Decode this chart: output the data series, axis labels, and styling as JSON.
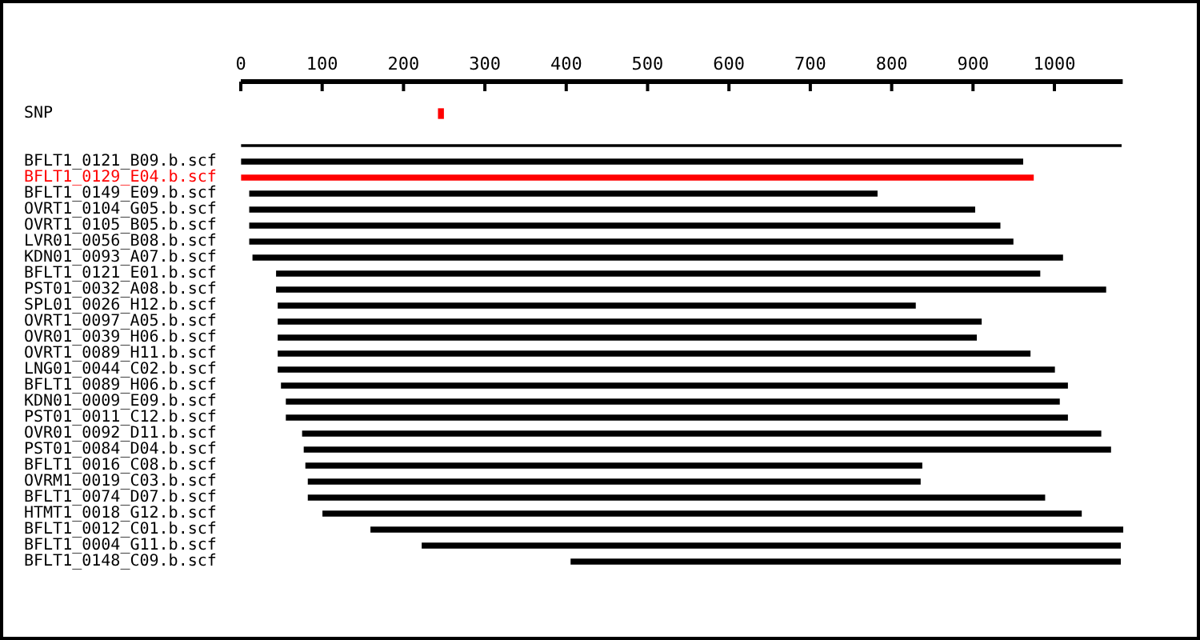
{
  "chart_data": {
    "type": "bar",
    "orientation": "horizontal",
    "xlim": [
      0,
      1084
    ],
    "xticks": [
      0,
      100,
      200,
      300,
      400,
      500,
      600,
      700,
      800,
      900,
      1000
    ],
    "categories": [
      "SNP",
      null,
      null,
      "BFLT1_0121_B09.b.scf",
      "BFLT1_0129_E04.b.scf",
      "BFLT1_0149_E09.b.scf",
      "OVRT1_0104_G05.b.scf",
      "OVRT1_0105_B05.b.scf",
      "LVR01_0056_B08.b.scf",
      "KDN01_0093_A07.b.scf",
      "BFLT1_0121_E01.b.scf",
      "PST01_0032_A08.b.scf",
      "SPL01_0026_H12.b.scf",
      "OVRT1_0097_A05.b.scf",
      "OVR01_0039_H06.b.scf",
      "OVRT1_0089_H11.b.scf",
      "LNG01_0044_C02.b.scf",
      "BFLT1_0089_H06.b.scf",
      "KDN01_0009_E09.b.scf",
      "PST01_0011_C12.b.scf",
      "OVR01_0092_D11.b.scf",
      "PST01_0084_D04.b.scf",
      "BFLT1_0016_C08.b.scf",
      "OVRM1_0019_C03.b.scf",
      "BFLT1_0074_D07.b.scf",
      "HTMT1_0018_G12.b.scf",
      "BFLT1_0012_C01.b.scf",
      "BFLT1_0004_G11.b.scf",
      "BFLT1_0148_C09.b.scf"
    ],
    "series": [
      {
        "color": "#ff0000",
        "values": [
          6,
          null,
          null,
          null,
          null,
          null,
          null,
          null,
          null,
          null,
          null,
          null,
          null,
          null,
          null,
          null,
          null,
          null,
          null,
          null,
          null,
          null,
          null,
          null,
          null,
          null,
          null,
          null,
          null
        ],
        "base": [
          243,
          null,
          null,
          null,
          null,
          null,
          null,
          null,
          null,
          null,
          null,
          null,
          null,
          null,
          null,
          null,
          null,
          null,
          null,
          null,
          null,
          null,
          null,
          null,
          null,
          null,
          null,
          null,
          null
        ]
      },
      {
        "color": "#000000",
        "values": [
          null,
          null,
          1082,
          null,
          null,
          null,
          null,
          null,
          null,
          null,
          null,
          null,
          null,
          null,
          null,
          null,
          null,
          null,
          null,
          null,
          null,
          null,
          null,
          null,
          null,
          null,
          null,
          null,
          null
        ],
        "base": [
          null,
          null,
          0,
          null,
          null,
          null,
          null,
          null,
          null,
          null,
          null,
          null,
          null,
          null,
          null,
          null,
          null,
          null,
          null,
          null,
          null,
          null,
          null,
          null,
          null,
          null,
          null,
          null,
          null
        ]
      },
      {
        "colors": [
          null,
          null,
          null,
          "#000000",
          "#ff0000",
          "#000000",
          "#000000",
          "#000000",
          "#000000",
          "#000000",
          "#000000",
          "#000000",
          "#000000",
          "#000000",
          "#000000",
          "#000000",
          "#000000",
          "#000000",
          "#000000",
          "#000000",
          "#000000",
          "#000000",
          "#000000",
          "#000000",
          "#000000",
          "#000000",
          "#000000",
          "#000000",
          "#000000"
        ],
        "values": [
          null,
          null,
          null,
          960,
          973,
          771,
          891,
          922,
          938,
          995,
          938,
          1019,
          783,
          864,
          858,
          924,
          954,
          966,
          950,
          960,
          981,
          991,
          757,
          752,
          905,
          932,
          924,
          858,
          675
        ],
        "base": [
          null,
          null,
          null,
          1,
          1,
          11,
          11,
          11,
          11,
          15,
          44,
          44,
          46,
          46,
          46,
          46,
          46,
          50,
          56,
          56,
          76,
          78,
          80,
          83,
          83,
          101,
          160,
          223,
          406
        ]
      }
    ]
  }
}
